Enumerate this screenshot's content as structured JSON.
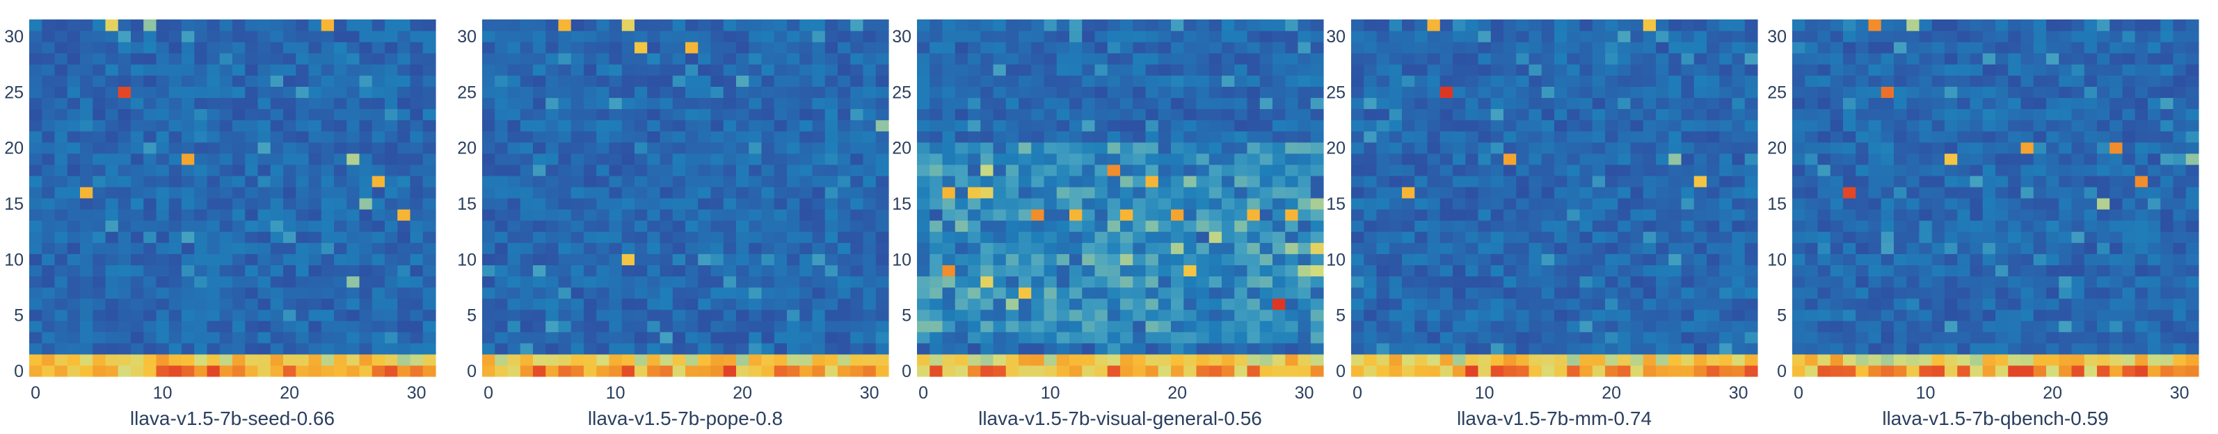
{
  "chart_data": [
    {
      "type": "heatmap",
      "xlabel": "llava-v1.5-7b-seed-0.66",
      "x_ticks": [
        "0",
        "10",
        "20",
        "30"
      ],
      "y_ticks": [
        "0",
        "5",
        "10",
        "15",
        "20",
        "25",
        "30"
      ],
      "xlim": [
        0,
        31
      ],
      "ylim": [
        0,
        31
      ],
      "grid": "32x32",
      "hotspots": [
        [
          7,
          25,
          0.92
        ],
        [
          12,
          19,
          0.75
        ],
        [
          4,
          16,
          0.7
        ],
        [
          25,
          19,
          0.5
        ],
        [
          27,
          17,
          0.7
        ],
        [
          26,
          15,
          0.45
        ],
        [
          29,
          14,
          0.7
        ],
        [
          25,
          8,
          0.45
        ],
        [
          6,
          31,
          0.6
        ],
        [
          9,
          31,
          0.45
        ],
        [
          23,
          31,
          0.7
        ]
      ]
    },
    {
      "type": "heatmap",
      "xlabel": "llava-v1.5-7b-pope-0.8",
      "x_ticks": [
        "0",
        "10",
        "20",
        "30"
      ],
      "y_ticks": [
        "0",
        "5",
        "10",
        "15",
        "20",
        "25",
        "30"
      ],
      "xlim": [
        0,
        31
      ],
      "ylim": [
        0,
        31
      ],
      "grid": "32x32",
      "hotspots": [
        [
          6,
          31,
          0.7
        ],
        [
          12,
          29,
          0.65
        ],
        [
          16,
          29,
          0.7
        ],
        [
          11,
          10,
          0.65
        ],
        [
          20,
          26,
          0.35
        ],
        [
          31,
          22,
          0.45
        ],
        [
          11,
          31,
          0.6
        ]
      ]
    },
    {
      "type": "heatmap",
      "xlabel": "llava-v1.5-7b-visual-general-0.56",
      "x_ticks": [
        "0",
        "10",
        "20",
        "30"
      ],
      "y_ticks": [
        "0",
        "5",
        "10",
        "15",
        "20",
        "25",
        "30"
      ],
      "xlim": [
        0,
        31
      ],
      "ylim": [
        0,
        31
      ],
      "grid": "32x32",
      "hotspots": [
        [
          28,
          6,
          0.95
        ],
        [
          15,
          18,
          0.8
        ],
        [
          18,
          17,
          0.7
        ],
        [
          2,
          16,
          0.7
        ],
        [
          4,
          16,
          0.65
        ],
        [
          5,
          16,
          0.6
        ],
        [
          9,
          14,
          0.8
        ],
        [
          12,
          14,
          0.7
        ],
        [
          16,
          14,
          0.7
        ],
        [
          20,
          14,
          0.75
        ],
        [
          26,
          14,
          0.7
        ],
        [
          29,
          14,
          0.7
        ],
        [
          8,
          7,
          0.65
        ],
        [
          2,
          9,
          0.8
        ],
        [
          31,
          11,
          0.6
        ],
        [
          31,
          9,
          0.55
        ],
        [
          21,
          9,
          0.65
        ],
        [
          5,
          8,
          0.6
        ]
      ]
    },
    {
      "type": "heatmap",
      "xlabel": "llava-v1.5-7b-mm-0.74",
      "x_ticks": [
        "0",
        "10",
        "20",
        "30"
      ],
      "y_ticks": [
        "0",
        "5",
        "10",
        "15",
        "20",
        "25",
        "30"
      ],
      "xlim": [
        0,
        31
      ],
      "ylim": [
        0,
        31
      ],
      "grid": "32x32",
      "hotspots": [
        [
          7,
          25,
          0.95
        ],
        [
          12,
          19,
          0.75
        ],
        [
          4,
          16,
          0.7
        ],
        [
          25,
          19,
          0.45
        ],
        [
          27,
          17,
          0.65
        ],
        [
          6,
          31,
          0.7
        ],
        [
          23,
          31,
          0.65
        ]
      ]
    },
    {
      "type": "heatmap",
      "xlabel": "llava-v1.5-7b-qbench-0.59",
      "x_ticks": [
        "0",
        "10",
        "20",
        "30"
      ],
      "y_ticks": [
        "0",
        "5",
        "10",
        "15",
        "20",
        "25",
        "30"
      ],
      "xlim": [
        0,
        31
      ],
      "ylim": [
        0,
        31
      ],
      "grid": "32x32",
      "hotspots": [
        [
          4,
          16,
          0.92
        ],
        [
          7,
          25,
          0.85
        ],
        [
          12,
          19,
          0.65
        ],
        [
          18,
          20,
          0.75
        ],
        [
          25,
          20,
          0.8
        ],
        [
          27,
          17,
          0.8
        ],
        [
          31,
          19,
          0.45
        ],
        [
          24,
          15,
          0.5
        ],
        [
          6,
          31,
          0.8
        ],
        [
          9,
          31,
          0.5
        ]
      ]
    }
  ],
  "colors": {
    "scale": [
      "#313695",
      "#2c5ba8",
      "#1f7fb9",
      "#45a1c0",
      "#8cc3a4",
      "#d7dd7a",
      "#f8c139",
      "#f39a2c",
      "#e8592a",
      "#d7191c"
    ],
    "axis_text": "#2a3f5f",
    "background": "#ffffff"
  }
}
